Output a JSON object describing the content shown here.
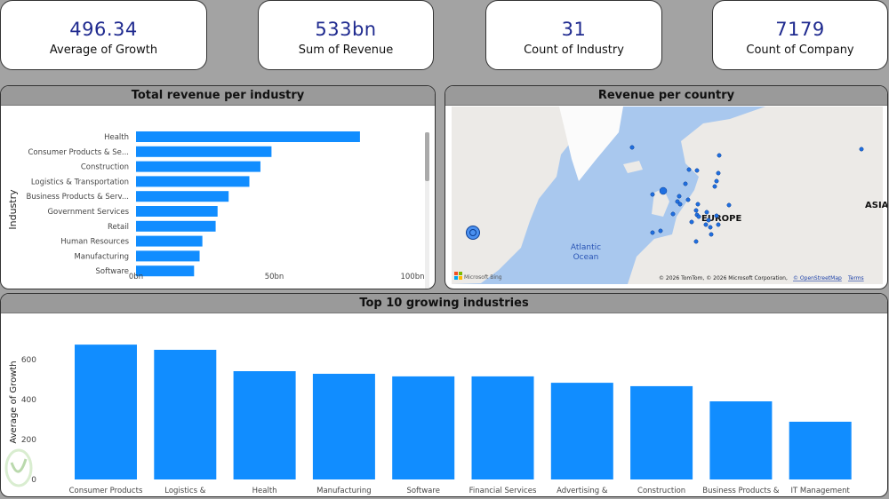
{
  "kpis": [
    {
      "value": "496.34",
      "label": "Average of Growth"
    },
    {
      "value": "533bn",
      "label": "Sum of Revenue"
    },
    {
      "value": "31",
      "label": "Count of Industry"
    },
    {
      "value": "7179",
      "label": "Count of Company"
    }
  ],
  "colors": {
    "bar": "#118dff",
    "kpi_value": "#1f2a8f",
    "header": "#9a9a9a",
    "background": "#a3a3a3"
  },
  "map": {
    "title": "Revenue per country",
    "labels": {
      "europe": "EUROPE",
      "asia": "ASIA",
      "ocean_line1": "Atlantic",
      "ocean_line2": "Ocean"
    },
    "brand": "Microsoft Bing",
    "attribution": "© 2026 TomTom, © 2026 Microsoft Corporation,",
    "osm_link": "© OpenStreetMap",
    "terms_link": "Terms"
  },
  "chart_data": [
    {
      "type": "bar",
      "orientation": "horizontal",
      "title": "Total revenue per industry",
      "ylabel": "Industry",
      "xlabel": "",
      "categories": [
        "Health",
        "Consumer Products & Se...",
        "Construction",
        "Logistics & Transportation",
        "Business Products & Serv...",
        "Government Services",
        "Retail",
        "Human Resources",
        "Manufacturing",
        "Software"
      ],
      "values": [
        81,
        49,
        45,
        41,
        33.5,
        29.5,
        28.8,
        24,
        23,
        21
      ],
      "unit": "bn",
      "xlim": [
        0,
        100
      ],
      "xticks": [
        "0bn",
        "50bn",
        "100bn"
      ],
      "grid": false
    },
    {
      "type": "bar",
      "orientation": "vertical",
      "title": "Top 10 growing industries",
      "ylabel": "Average of Growth",
      "xlabel": "",
      "categories": [
        "Consumer Products & Services",
        "Logistics & Transportation",
        "Health",
        "Manufacturing",
        "Software",
        "Financial Services",
        "Advertising & Marketing",
        "Construction",
        "Business Products & Services",
        "IT Management"
      ],
      "values": [
        675,
        649,
        542,
        529,
        516,
        516,
        484,
        467,
        391,
        289
      ],
      "ylim": [
        0,
        700
      ],
      "yticks": [
        "0",
        "200",
        "400",
        "600"
      ],
      "grid": false
    }
  ]
}
